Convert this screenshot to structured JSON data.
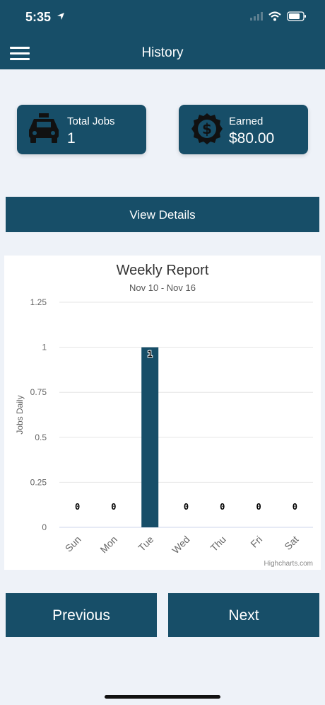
{
  "status_bar": {
    "time": "5:35"
  },
  "header": {
    "title": "History"
  },
  "stats": {
    "total_jobs_label": "Total Jobs",
    "total_jobs_value": "1",
    "earned_label": "Earned",
    "earned_value": "$80.00"
  },
  "actions": {
    "view_details": "View Details",
    "previous": "Previous",
    "next": "Next"
  },
  "credits": "Highcharts.com",
  "colors": {
    "primary": "#174e68",
    "background": "#eef2f8"
  },
  "chart_data": {
    "type": "bar",
    "title": "Weekly Report",
    "subtitle": "Nov 10 - Nov 16",
    "ylabel": "Jobs Daily",
    "xlabel": "",
    "categories": [
      "Sun",
      "Mon",
      "Tue",
      "Wed",
      "Thu",
      "Fri",
      "Sat"
    ],
    "values": [
      0,
      0,
      1,
      0,
      0,
      0,
      0
    ],
    "data_labels": [
      "0",
      "0",
      "1",
      "0",
      "0",
      "0",
      "0"
    ],
    "ylim": [
      0,
      1.25
    ],
    "yticks": [
      "0",
      "0.25",
      "0.5",
      "0.75",
      "1",
      "1.25"
    ],
    "grid": true,
    "legend": false
  }
}
